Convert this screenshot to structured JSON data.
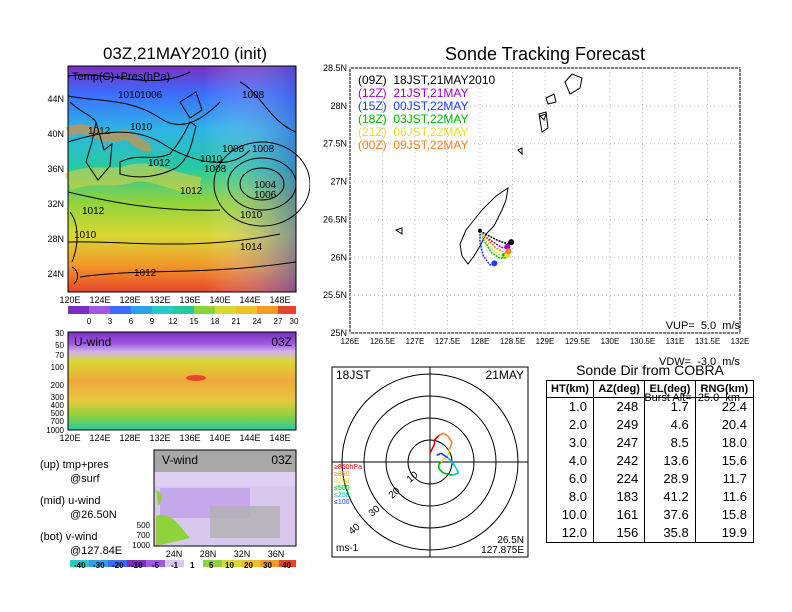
{
  "map_panel": {
    "title": "03Z,21MAY2010 (init)",
    "label": "Temp(C)+Pres(hPa)",
    "lat_ticks": [
      "44N",
      "40N",
      "36N",
      "32N",
      "28N",
      "24N"
    ],
    "lon_ticks": [
      "120E",
      "124E",
      "128E",
      "132E",
      "136E",
      "140E",
      "144E",
      "148E"
    ],
    "isobar_labels": [
      "1010",
      "1006",
      "1008",
      "1012",
      "1010",
      "1012",
      "1010",
      "1008",
      "1008",
      "1008",
      "1012",
      "1004",
      "1006",
      "1012",
      "1010",
      "1010",
      "1014",
      "1012"
    ],
    "colorbar_ticks": [
      "0",
      "3",
      "6",
      "9",
      "12",
      "15",
      "18",
      "21",
      "24",
      "27",
      "30"
    ]
  },
  "uwind_panel": {
    "label": "U-wind",
    "time": "03Z",
    "y_ticks": [
      "30",
      "50",
      "70",
      "100",
      "200",
      "300",
      "400",
      "500",
      "700",
      "1000"
    ],
    "x_ticks": [
      "120E",
      "124E",
      "128E",
      "132E",
      "136E",
      "140E",
      "144E",
      "148E"
    ]
  },
  "vwind_panel": {
    "label": "V-wind",
    "time": "03Z",
    "y_ticks": [
      "500",
      "700",
      "1000"
    ],
    "x_ticks": [
      "24N",
      "28N",
      "32N",
      "36N"
    ],
    "colorbar_ticks": [
      "-40",
      "-30",
      "-20",
      "-10",
      "-5",
      "-1",
      "1",
      "5",
      "10",
      "20",
      "30",
      "40"
    ]
  },
  "legend_text": {
    "up_line1": "(up) tmp+pres",
    "up_line2": "@surf",
    "mid_line1": "(mid) u-wind",
    "mid_line2": "@26.50N",
    "bot_line1": "(bot) v-wind",
    "bot_line2": "@127.84E"
  },
  "tracking_panel": {
    "title": "Sonde Tracking Forecast",
    "lat_ticks": [
      "28.5N",
      "28N",
      "27.5N",
      "27N",
      "26.5N",
      "26N",
      "25.5N",
      "25N"
    ],
    "lon_ticks": [
      "126E",
      "126.5E",
      "127E",
      "127.5E",
      "128E",
      "128.5E",
      "129E",
      "129.5E",
      "130E",
      "130.5E",
      "131E",
      "131.5E",
      "132E"
    ],
    "legend": [
      {
        "label": "(09Z)  18JST,21MAY2010",
        "color": "#000000"
      },
      {
        "label": "(12Z)  21JST,21MAY",
        "color": "#a000c8"
      },
      {
        "label": "(15Z)  00JST,22MAY",
        "color": "#1e3cff"
      },
      {
        "label": "(18Z)  03JST,22MAY",
        "color": "#00b400"
      },
      {
        "label": "(21Z)  06JST,22MAY",
        "color": "#e6dc32"
      },
      {
        "label": "(00Z)  09JST,22MAY",
        "color": "#f08228"
      }
    ],
    "vup": "VUP=  5.0  m/s",
    "vdw": "VDW=  -3.0  m/s",
    "burst": "Burst Alt=  25.0  km"
  },
  "hodograph": {
    "time": "18JST",
    "date": "21MAY",
    "ring_labels": [
      "10",
      "20",
      "30",
      "40"
    ],
    "pressure_labels": [
      {
        "label": "≥850hPa",
        "color": "#e60000"
      },
      {
        "label": "≥850",
        "color": "#f08228"
      },
      {
        "label": "≥700",
        "color": "#e6dc32"
      },
      {
        "label": "≤500",
        "color": "#00b400"
      },
      {
        "label": "≤250",
        "color": "#00c8c8"
      },
      {
        "label": "≤100",
        "color": "#1e3cff"
      }
    ],
    "unit": "ms-1",
    "lat": "26.5N",
    "lon": "127.875E"
  },
  "sonde_table": {
    "title": "Sonde Dir from COBRA",
    "headers": [
      "HT(km)",
      "AZ(deg)",
      "EL(deg)",
      "RNG(km)"
    ],
    "rows": [
      [
        "1.0",
        "248",
        "1.7",
        "22.4"
      ],
      [
        "2.0",
        "249",
        "4.6",
        "20.4"
      ],
      [
        "3.0",
        "247",
        "8.5",
        "18.0"
      ],
      [
        "4.0",
        "242",
        "13.6",
        "15.6"
      ],
      [
        "6.0",
        "224",
        "28.9",
        "11.7"
      ],
      [
        "8.0",
        "183",
        "41.2",
        "11.6"
      ],
      [
        "10.0",
        "161",
        "37.6",
        "15.8"
      ],
      [
        "12.0",
        "156",
        "35.8",
        "19.9"
      ]
    ]
  },
  "chart_data": [
    {
      "type": "line",
      "title": "Sonde Tracking Forecast",
      "xlabel": "",
      "ylabel": "",
      "xlim": [
        126,
        132
      ],
      "ylim": [
        25,
        28.5
      ],
      "launch": {
        "x": 128.0,
        "y": 26.35
      },
      "series": [
        {
          "name": "(09Z)  18JST,21MAY2010",
          "color": "#000000",
          "x": [
            128.0,
            128.12,
            128.28,
            128.42,
            128.48
          ],
          "y": [
            26.35,
            26.29,
            26.22,
            26.18,
            26.2
          ]
        },
        {
          "name": "(12Z)  21JST,21MAY",
          "color": "#a000c8",
          "x": [
            128.0,
            128.1,
            128.24,
            128.36,
            128.42
          ],
          "y": [
            26.35,
            26.26,
            26.18,
            26.12,
            26.14
          ]
        },
        {
          "name": "(15Z)  00JST,22MAY",
          "color": "#1e3cff",
          "x": [
            128.0,
            128.0,
            128.05,
            128.15,
            128.22
          ],
          "y": [
            26.35,
            26.2,
            26.02,
            25.9,
            25.92
          ]
        },
        {
          "name": "(18Z)  03JST,22MAY",
          "color": "#00b400",
          "x": [
            128.0,
            128.06,
            128.18,
            128.32,
            128.38
          ],
          "y": [
            26.35,
            26.22,
            26.06,
            25.98,
            26.02
          ]
        },
        {
          "name": "(21Z)  06JST,22MAY",
          "color": "#e6dc32",
          "x": [
            128.0,
            128.08,
            128.22,
            128.36,
            128.42
          ],
          "y": [
            26.35,
            26.22,
            26.08,
            26.0,
            26.03
          ]
        },
        {
          "name": "(00Z)  09JST,22MAY",
          "color": "#f08228",
          "x": [
            128.0,
            128.1,
            128.25,
            128.38,
            128.44
          ],
          "y": [
            26.35,
            26.25,
            26.12,
            26.06,
            26.08
          ]
        }
      ]
    },
    {
      "type": "line",
      "title": "",
      "description_units": "ms-1",
      "rings": [
        10,
        20,
        30,
        40
      ],
      "hodograph": {
        "u": [
          0,
          1,
          2,
          2,
          4,
          6,
          8,
          10,
          9,
          8,
          6,
          5,
          4,
          4,
          6,
          10,
          13,
          12,
          10,
          8,
          5,
          3
        ],
        "v": [
          4,
          6,
          8,
          10,
          12,
          13,
          12,
          9,
          6,
          3,
          1,
          0,
          -1,
          -3,
          -5,
          -6,
          -5,
          -3,
          0,
          2,
          4,
          3
        ]
      }
    },
    {
      "type": "table",
      "title": "Sonde Dir from COBRA",
      "columns": [
        "HT(km)",
        "AZ(deg)",
        "EL(deg)",
        "RNG(km)"
      ],
      "rows": [
        [
          1.0,
          248,
          1.7,
          22.4
        ],
        [
          2.0,
          249,
          4.6,
          20.4
        ],
        [
          3.0,
          247,
          8.5,
          18.0
        ],
        [
          4.0,
          242,
          13.6,
          15.6
        ],
        [
          6.0,
          224,
          28.9,
          11.7
        ],
        [
          8.0,
          183,
          41.2,
          11.6
        ],
        [
          10.0,
          161,
          37.6,
          15.8
        ],
        [
          12.0,
          156,
          35.8,
          19.9
        ]
      ]
    }
  ]
}
